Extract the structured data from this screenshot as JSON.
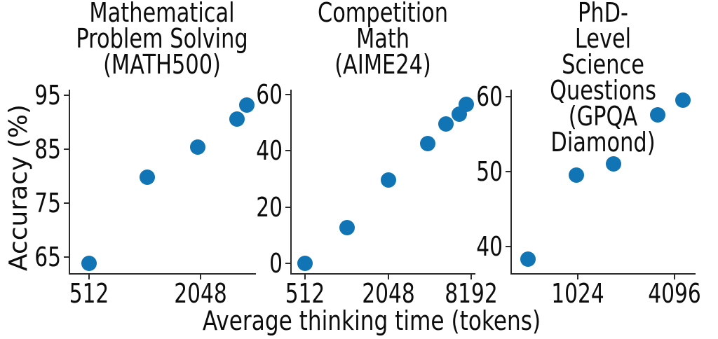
{
  "figure": {
    "xlabel": "Average thinking time (tokens)",
    "ylabel": "Accuracy (%)",
    "marker_color": "#1174b4",
    "axis_color": "#2b2b2b"
  },
  "chart_data": [
    {
      "type": "scatter",
      "title": "Mathematical\nProblem Solving\n(MATH500)",
      "xlabel": "Average thinking time (tokens)",
      "ylabel": "Accuracy (%)",
      "x_scale": "log2",
      "xlim": [
        405,
        4096
      ],
      "ylim": [
        62,
        96
      ],
      "xticks": [
        512,
        2048
      ],
      "yticks": [
        65,
        75,
        85,
        95
      ],
      "grid": false,
      "legend": "none",
      "x": [
        512,
        1060,
        1990,
        3240,
        3650
      ],
      "y": [
        63.8,
        79.8,
        85.3,
        90.5,
        93.1
      ]
    },
    {
      "type": "scatter",
      "title": "Competition\nMath\n(AIME24)",
      "xlabel": "Average thinking time (tokens)",
      "ylabel": "Accuracy (%)",
      "x_scale": "log2",
      "xlim": [
        410,
        8780
      ],
      "ylim": [
        -3.5,
        61.7
      ],
      "xticks": [
        512,
        2048,
        8192
      ],
      "yticks": [
        0,
        20,
        40,
        60
      ],
      "grid": false,
      "legend": "none",
      "x": [
        512,
        1030,
        2048,
        3980,
        5400,
        6700,
        7500
      ],
      "y": [
        0,
        12.8,
        29.5,
        42.5,
        49.4,
        53.0,
        56.5
      ]
    },
    {
      "type": "scatter",
      "title": "PhD-Level\nScience Questions\n(GPQA Diamond)",
      "xlabel": "Average thinking time (tokens)",
      "ylabel": "Accuracy (%)",
      "x_scale": "log2",
      "xlim": [
        396,
        5520
      ],
      "ylim": [
        36.4,
        60.9
      ],
      "xticks": [
        1024,
        4096
      ],
      "yticks": [
        40,
        50,
        60
      ],
      "grid": false,
      "legend": "none",
      "x": [
        500,
        1000,
        1700,
        3200,
        4600
      ],
      "y": [
        38.3,
        49.5,
        51.0,
        57.5,
        59.5
      ]
    }
  ]
}
